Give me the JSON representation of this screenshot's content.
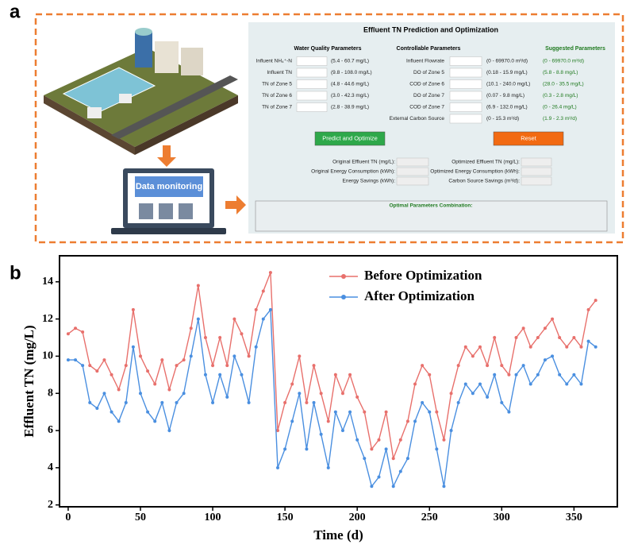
{
  "panel_a": {
    "label": "a",
    "monitor_label": "Data monitoring",
    "ui": {
      "title": "Effluent TN Prediction and Optimization",
      "water_quality": {
        "header": "Water Quality Parameters",
        "rows": [
          {
            "label": "Influent NH₄⁺-N",
            "range": "(5.4 - 60.7 mg/L)"
          },
          {
            "label": "Influent TN",
            "range": "(9.8 - 108.0 mg/L)"
          },
          {
            "label": "TN of Zone 5",
            "range": "(4.8 - 44.6 mg/L)"
          },
          {
            "label": "TN of Zone 6",
            "range": "(3.0 - 42.3 mg/L)"
          },
          {
            "label": "TN of Zone 7",
            "range": "(2.8 - 38.9 mg/L)"
          }
        ]
      },
      "controllable": {
        "header": "Controllable Parameters",
        "rows": [
          {
            "label": "Influent Flowrate",
            "range": "(0 - 69970.0 m³/d)"
          },
          {
            "label": "DO of Zone 5",
            "range": "(0.18 - 15.9 mg/L)"
          },
          {
            "label": "COD of Zone 6",
            "range": "(10.1 - 240.0 mg/L)"
          },
          {
            "label": "DO of Zone 7",
            "range": "(0.07 - 9.8 mg/L)"
          },
          {
            "label": "COD of Zone 7",
            "range": "(6.9 - 132.0 mg/L)"
          },
          {
            "label": "External Carbon Source",
            "range": "(0 - 15.3 m³/d)"
          }
        ]
      },
      "suggested": {
        "header": "Suggested Parameters",
        "values": [
          "(0 - 69970.0 m³/d)",
          "(5.8 - 8.8 mg/L)",
          "(28.0 - 35.5 mg/L)",
          "(0.3 - 2.8 mg/L)",
          "(0 - 26.4 mg/L)",
          "(1.9 - 2.3 m³/d)"
        ]
      },
      "buttons": [
        "Predict and Optimize",
        "Reset"
      ],
      "outputs_left": [
        "Original Effluent TN (mg/L):",
        "Original Energy Consumption (kWh):",
        "Energy Savings (kWh):"
      ],
      "outputs_right": [
        "Optimized Effluent TN (mg/L):",
        "Optimized Energy Consumption (kWh):",
        "Carbon Source Savings (m³/d):"
      ],
      "combination_title": "Optimal Parameters Combination:"
    }
  },
  "panel_b_label": "b",
  "chart_data": {
    "type": "line",
    "x_label": "Time (d)",
    "y_label": "Effluent TN (mg/L)",
    "x": [
      0,
      5,
      10,
      15,
      20,
      25,
      30,
      35,
      40,
      45,
      50,
      55,
      60,
      65,
      70,
      75,
      80,
      85,
      90,
      95,
      100,
      105,
      110,
      115,
      120,
      125,
      130,
      135,
      140,
      145,
      150,
      155,
      160,
      165,
      170,
      175,
      180,
      185,
      190,
      195,
      200,
      205,
      210,
      215,
      220,
      225,
      230,
      235,
      240,
      245,
      250,
      255,
      260,
      265,
      270,
      275,
      280,
      285,
      290,
      295,
      300,
      305,
      310,
      315,
      320,
      325,
      330,
      335,
      340,
      345,
      350,
      355,
      360,
      365
    ],
    "series": [
      {
        "name": "Before Optimization",
        "color": "#e8706c",
        "values": [
          11.2,
          11.5,
          11.3,
          9.5,
          9.2,
          9.8,
          9.0,
          8.2,
          9.5,
          12.5,
          10.0,
          9.2,
          8.5,
          9.8,
          8.2,
          9.5,
          9.8,
          11.5,
          13.8,
          11.0,
          9.5,
          11.0,
          9.5,
          12.0,
          11.2,
          10.0,
          12.5,
          13.5,
          14.5,
          6.0,
          7.5,
          8.5,
          10.0,
          7.5,
          9.5,
          8.0,
          6.5,
          9.0,
          8.0,
          9.0,
          7.8,
          7.0,
          5.0,
          5.5,
          7.0,
          4.5,
          5.5,
          6.5,
          8.5,
          9.5,
          9.0,
          7.0,
          5.5,
          8.0,
          9.5,
          10.5,
          10.0,
          10.5,
          9.5,
          11.0,
          9.5,
          9.0,
          11.0,
          11.5,
          10.5,
          11.0,
          11.5,
          12.0,
          11.0,
          10.5,
          11.0,
          10.5,
          12.5,
          13.0
        ]
      },
      {
        "name": "After Optimization",
        "color": "#4a8fe0",
        "values": [
          9.8,
          9.8,
          9.5,
          7.5,
          7.2,
          8.0,
          7.0,
          6.5,
          7.5,
          10.5,
          8.0,
          7.0,
          6.5,
          7.5,
          6.0,
          7.5,
          8.0,
          10.0,
          12.0,
          9.0,
          7.5,
          9.0,
          7.8,
          10.0,
          9.0,
          7.5,
          10.5,
          12.0,
          12.5,
          4.0,
          5.0,
          6.5,
          8.0,
          5.0,
          7.5,
          5.8,
          4.0,
          7.0,
          6.0,
          7.0,
          5.5,
          4.5,
          3.0,
          3.5,
          5.0,
          3.0,
          3.8,
          4.5,
          6.5,
          7.5,
          7.0,
          5.0,
          3.0,
          6.0,
          7.5,
          8.5,
          8.0,
          8.5,
          7.8,
          9.0,
          7.5,
          7.0,
          9.0,
          9.5,
          8.5,
          9.0,
          9.8,
          10.0,
          9.0,
          8.5,
          9.0,
          8.5,
          10.8,
          10.5
        ]
      }
    ],
    "xlim": [
      -6,
      380
    ],
    "ylim": [
      1.9,
      15.4
    ],
    "xticks": [
      0,
      50,
      100,
      150,
      200,
      250,
      300,
      350
    ],
    "yticks": [
      2,
      4,
      6,
      8,
      10,
      12,
      14
    ],
    "legend": "upper center"
  }
}
